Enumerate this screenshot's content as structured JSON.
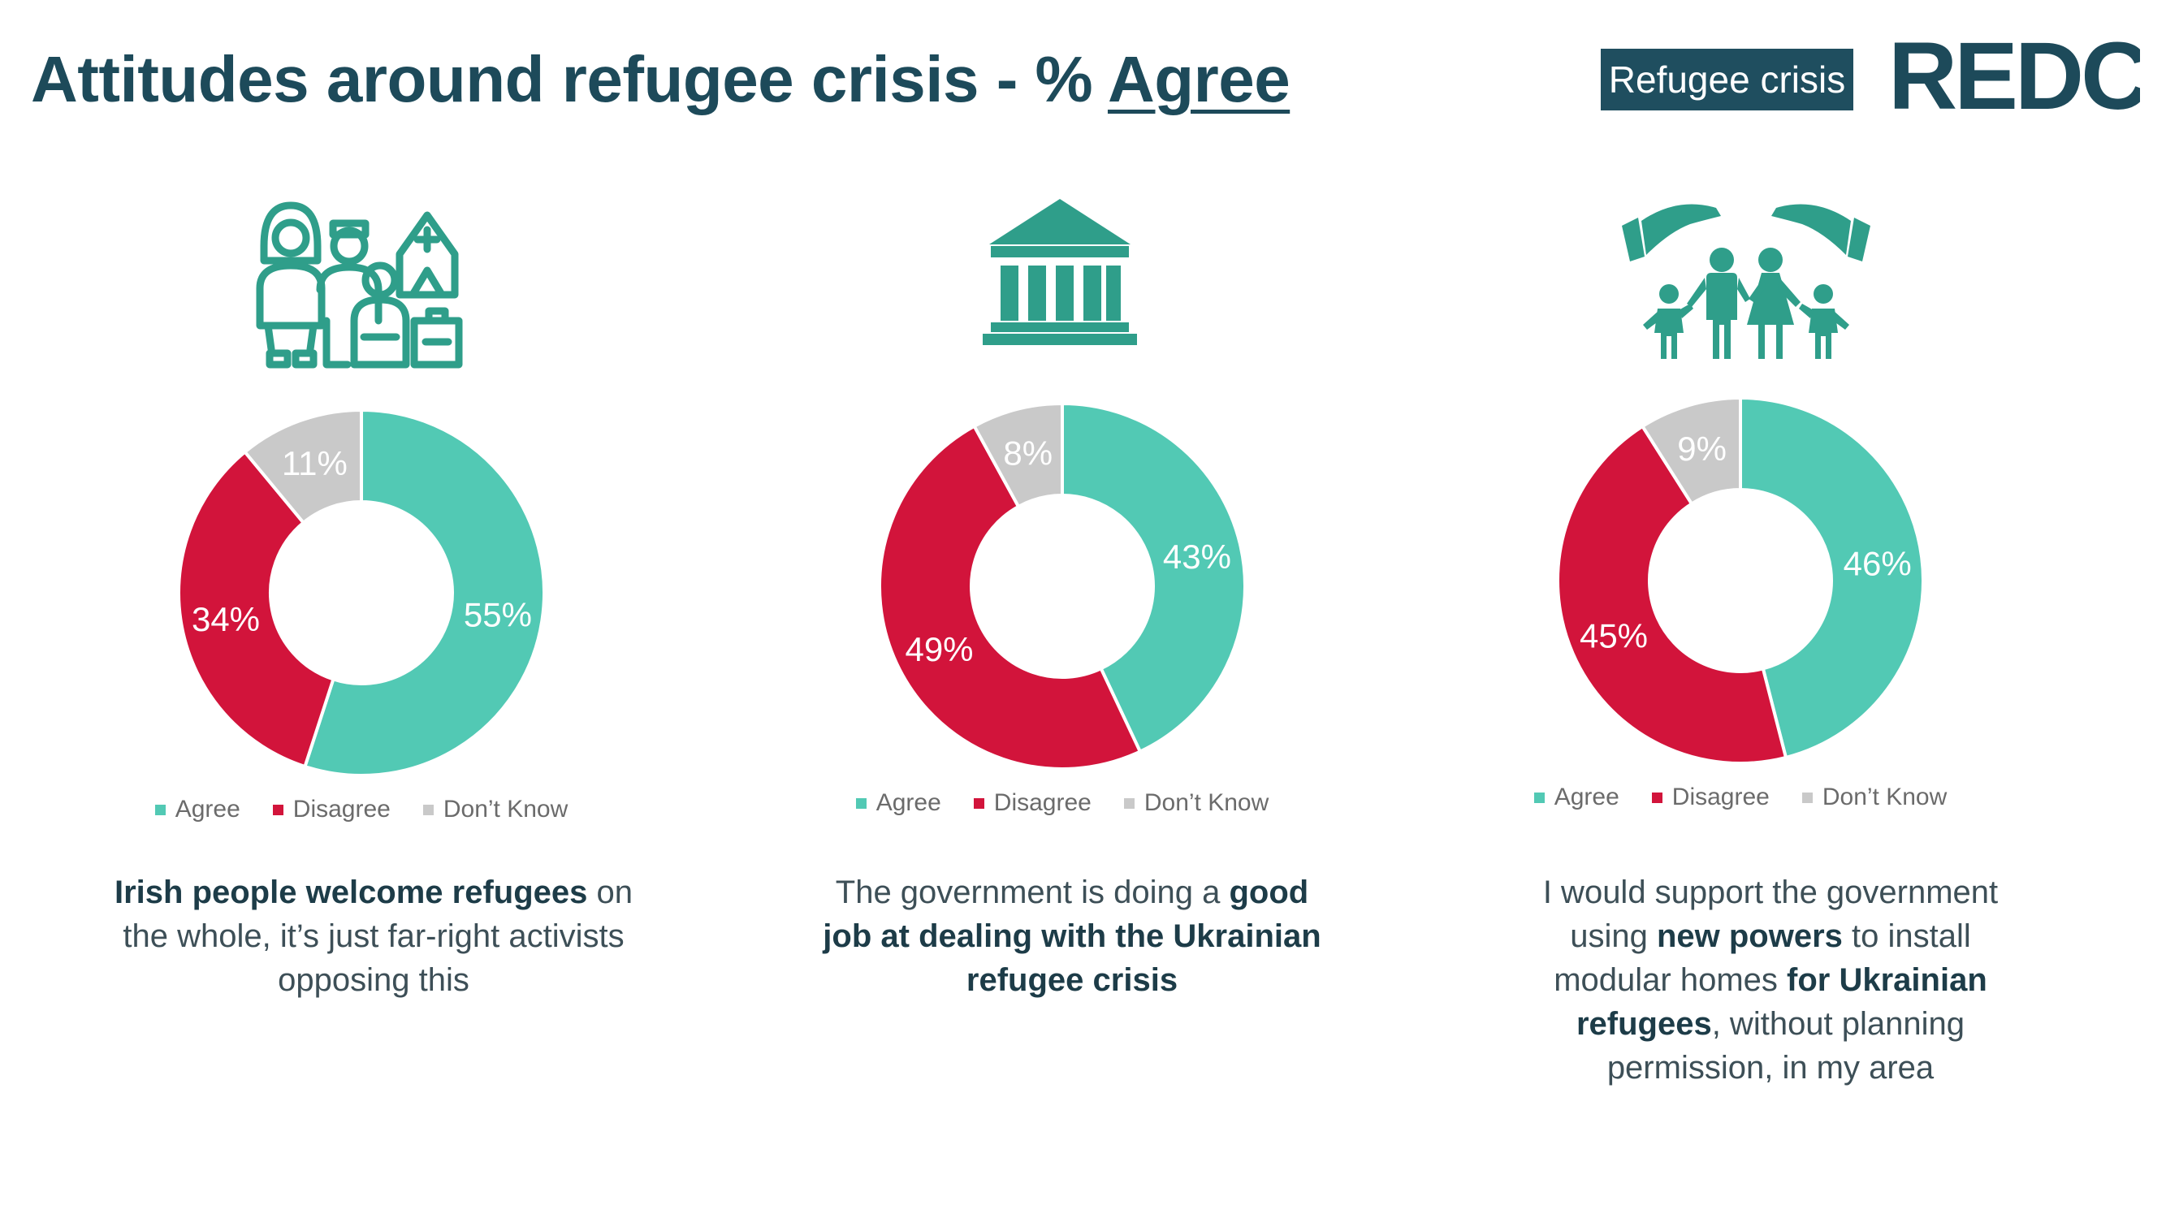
{
  "header": {
    "title_prefix": "Attitudes around refugee crisis - % ",
    "title_emphasis": "Agree",
    "tag": "Refugee crisis",
    "logo_text": "REDC"
  },
  "colors": {
    "agree": "#52c9b4",
    "disagree": "#d2143b",
    "dont_know": "#c9c9c9",
    "icon": "#2f9e8a",
    "title": "#1d4a5a",
    "tag_bg": "#1f4e5f"
  },
  "panels": [
    {
      "icon": "refugee-family-icon",
      "caption": [
        {
          "text": "Irish people welcome refugees",
          "bold": true
        },
        {
          "text": " on the whole, it’s just far-right activists opposing this",
          "bold": false
        }
      ]
    },
    {
      "icon": "government-building-icon",
      "caption": [
        {
          "text": "The government is doing a ",
          "bold": false
        },
        {
          "text": "good job at dealing with the Ukrainian refugee crisis",
          "bold": true
        }
      ]
    },
    {
      "icon": "protected-family-icon",
      "caption": [
        {
          "text": "I would support the government using ",
          "bold": false
        },
        {
          "text": "new powers",
          "bold": true
        },
        {
          "text": " to install modular homes ",
          "bold": false
        },
        {
          "text": "for Ukrainian refugees",
          "bold": true
        },
        {
          "text": ", without planning permission, in my area",
          "bold": false
        }
      ]
    }
  ],
  "chart_data": [
    {
      "type": "pie",
      "categories": [
        "Agree",
        "Disagree",
        "Don’t Know"
      ],
      "values": [
        55,
        34,
        11
      ],
      "labels": [
        "55%",
        "34%",
        "11%"
      ],
      "legend": "bottom"
    },
    {
      "type": "pie",
      "categories": [
        "Agree",
        "Disagree",
        "Don’t Know"
      ],
      "values": [
        43,
        49,
        8
      ],
      "labels": [
        "43%",
        "49%",
        "8%"
      ],
      "legend": "bottom"
    },
    {
      "type": "pie",
      "categories": [
        "Agree",
        "Disagree",
        "Don’t Know"
      ],
      "values": [
        46,
        45,
        9
      ],
      "labels": [
        "46%",
        "45%",
        "9%"
      ],
      "legend": "bottom"
    }
  ]
}
